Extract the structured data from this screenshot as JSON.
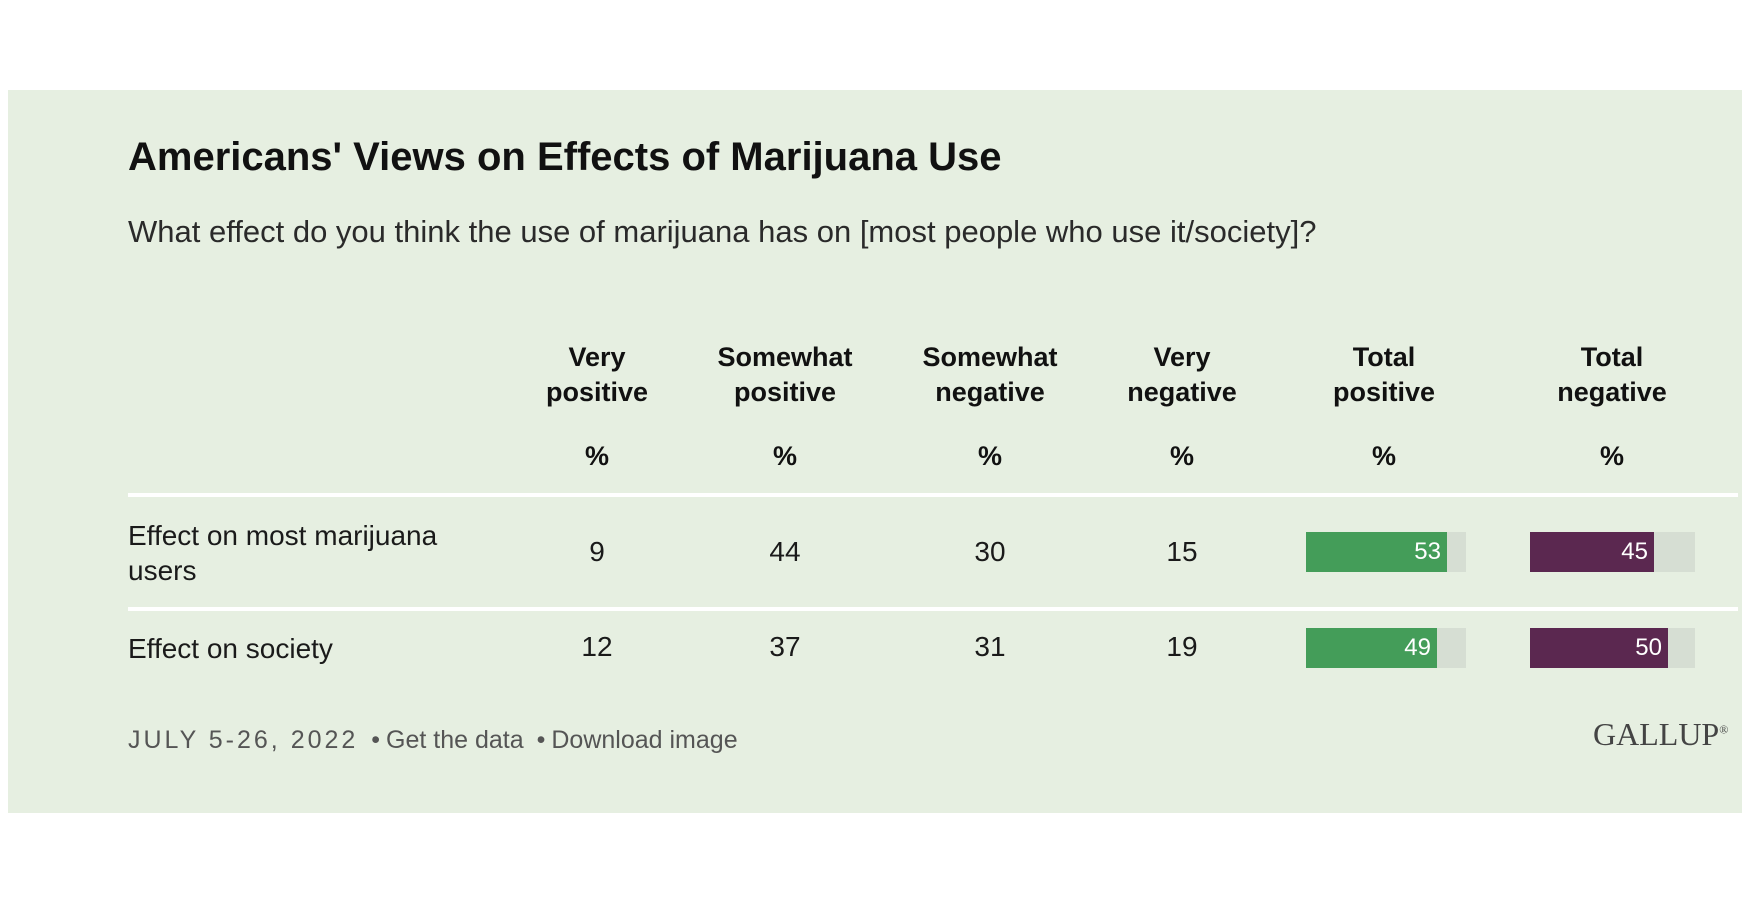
{
  "header": {
    "title": "Americans' Views on Effects of Marijuana Use",
    "subtitle": "What effect do you think the use of marijuana has on [most people who use it/society]?"
  },
  "colors": {
    "background": "#e6efe1",
    "positive_bar": "#449d59",
    "negative_bar": "#5b2850",
    "bar_track": "#d6ded3"
  },
  "chart_data": {
    "type": "table",
    "title": "Americans' Views on Effects of Marijuana Use",
    "subtitle": "What effect do you think the use of marijuana has on [most people who use it/society]?",
    "columns": [
      {
        "label_line1": "Very",
        "label_line2": "positive",
        "unit": "%"
      },
      {
        "label_line1": "Somewhat",
        "label_line2": "positive",
        "unit": "%"
      },
      {
        "label_line1": "Somewhat",
        "label_line2": "negative",
        "unit": "%"
      },
      {
        "label_line1": "Very",
        "label_line2": "negative",
        "unit": "%"
      },
      {
        "label_line1": "Total",
        "label_line2": "positive",
        "unit": "%"
      },
      {
        "label_line1": "Total",
        "label_line2": "negative",
        "unit": "%"
      }
    ],
    "rows": [
      {
        "label_line1": "Effect on most marijuana",
        "label_line2": "users",
        "very_positive": "9",
        "somewhat_positive": "44",
        "somewhat_negative": "30",
        "very_negative": "15",
        "total_positive": 53,
        "total_negative": 45
      },
      {
        "label_line1": "Effect on society",
        "label_line2": "",
        "very_positive": "12",
        "somewhat_positive": "37",
        "somewhat_negative": "31",
        "very_negative": "19",
        "total_positive": 49,
        "total_negative": 50
      }
    ],
    "bar_scale_max": 60
  },
  "footer": {
    "date": "JULY 5-26, 2022",
    "separator": "•",
    "get_data": "Get the data",
    "download": "Download image",
    "logo": "GALLUP"
  }
}
